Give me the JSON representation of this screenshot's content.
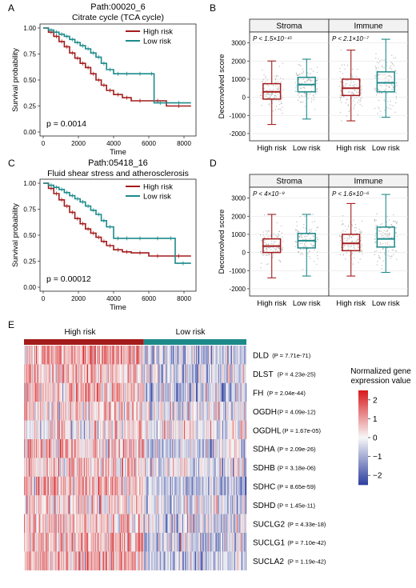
{
  "panels": {
    "A": {
      "letter": "A",
      "title": "Path:00020_6",
      "subtitle": "Citrate cycle (TCA cycle)",
      "pvalue": "p = 0.0014",
      "xlabel": "Time",
      "ylabel": "Survival probability",
      "legend": [
        "High risk",
        "Low risk"
      ]
    },
    "B": {
      "letter": "B",
      "ylabel": "Deconvolved score",
      "facets": [
        {
          "label": "Stroma",
          "p_text": "P < 1.5×10⁻¹⁵"
        },
        {
          "label": "Immune",
          "p_text": "P < 2.1×10⁻⁷"
        }
      ],
      "xticks": [
        "High risk",
        "Low risk",
        "High risk",
        "Low risk"
      ]
    },
    "C": {
      "letter": "C",
      "title": "Path:05418_16",
      "subtitle": "Fluid shear stress and atherosclerosis",
      "pvalue": "p = 0.00012",
      "xlabel": "Time",
      "ylabel": "Survival probability",
      "legend": [
        "High risk",
        "Low risk"
      ]
    },
    "D": {
      "letter": "D",
      "ylabel": "Deconvolved score",
      "facets": [
        {
          "label": "Stroma",
          "p_text": "P < 4×10⁻⁹"
        },
        {
          "label": "Immune",
          "p_text": "P < 1.6×10⁻⁶"
        }
      ],
      "xticks": [
        "High risk",
        "Low risk",
        "High risk",
        "Low risk"
      ]
    },
    "E": {
      "letter": "E",
      "group_labels": [
        "High risk",
        "Low risk"
      ],
      "legend_title": [
        "Normalized gene",
        "expression value"
      ]
    }
  },
  "colors": {
    "high": "#a31b1b",
    "low": "#1d8a8a",
    "heat_high": "#d7191c",
    "heat_mid": "#f7f7f7",
    "heat_low": "#2c3e9e"
  },
  "chart_data": [
    {
      "type": "line",
      "panel": "A",
      "chart": "kaplan-meier",
      "xlim": [
        0,
        8500
      ],
      "ylim": [
        0,
        1
      ],
      "xticks": [
        0,
        2000,
        4000,
        6000,
        8000
      ],
      "yticks": [
        0.0,
        0.25,
        0.5,
        0.75,
        1.0
      ],
      "series": [
        {
          "name": "High risk",
          "color": "#a31b1b",
          "x": [
            0,
            300,
            600,
            900,
            1200,
            1500,
            1800,
            2100,
            2400,
            2700,
            3000,
            3300,
            3600,
            4000,
            4500,
            5000,
            6000,
            7000,
            8400
          ],
          "y": [
            1.0,
            0.96,
            0.92,
            0.87,
            0.82,
            0.76,
            0.71,
            0.66,
            0.62,
            0.56,
            0.5,
            0.45,
            0.4,
            0.36,
            0.33,
            0.3,
            0.3,
            0.25,
            0.25
          ]
        },
        {
          "name": "Low risk",
          "color": "#1d8a8a",
          "x": [
            0,
            300,
            600,
            900,
            1200,
            1500,
            1800,
            2100,
            2400,
            2700,
            3000,
            3300,
            3600,
            4000,
            4500,
            5000,
            6000,
            6300,
            7000,
            8400
          ],
          "y": [
            1.0,
            0.98,
            0.96,
            0.94,
            0.92,
            0.89,
            0.86,
            0.83,
            0.8,
            0.76,
            0.72,
            0.66,
            0.6,
            0.56,
            0.56,
            0.56,
            0.56,
            0.28,
            0.28,
            0.28
          ]
        }
      ]
    },
    {
      "type": "box",
      "panel": "B",
      "ylim": [
        -2400,
        3600
      ],
      "yticks": [
        -2000,
        -1000,
        0,
        1000,
        2000,
        3000
      ],
      "facets": [
        "Stroma",
        "Immune"
      ],
      "groups": [
        {
          "facet": "Stroma",
          "name": "High risk",
          "color": "#a31b1b",
          "min": -1500,
          "q1": -100,
          "median": 300,
          "q3": 750,
          "max": 2000
        },
        {
          "facet": "Stroma",
          "name": "Low risk",
          "color": "#1d8a8a",
          "min": -1200,
          "q1": 300,
          "median": 700,
          "q3": 1100,
          "max": 2100
        },
        {
          "facet": "Immune",
          "name": "High risk",
          "color": "#a31b1b",
          "min": -1300,
          "q1": 100,
          "median": 500,
          "q3": 1000,
          "max": 2600
        },
        {
          "facet": "Immune",
          "name": "Low risk",
          "color": "#1d8a8a",
          "min": -1100,
          "q1": 300,
          "median": 800,
          "q3": 1400,
          "max": 3200
        }
      ]
    },
    {
      "type": "line",
      "panel": "C",
      "chart": "kaplan-meier",
      "xlim": [
        0,
        8500
      ],
      "ylim": [
        0,
        1
      ],
      "xticks": [
        0,
        2000,
        4000,
        6000,
        8000
      ],
      "yticks": [
        0.0,
        0.25,
        0.5,
        0.75,
        1.0
      ],
      "series": [
        {
          "name": "High risk",
          "color": "#a31b1b",
          "x": [
            0,
            300,
            600,
            900,
            1200,
            1500,
            1800,
            2100,
            2400,
            2700,
            3000,
            3300,
            3600,
            4000,
            4500,
            5000,
            6000,
            7000,
            8400
          ],
          "y": [
            1.0,
            0.95,
            0.9,
            0.84,
            0.78,
            0.72,
            0.66,
            0.61,
            0.56,
            0.52,
            0.48,
            0.44,
            0.4,
            0.36,
            0.34,
            0.33,
            0.3,
            0.3,
            0.3
          ]
        },
        {
          "name": "Low risk",
          "color": "#1d8a8a",
          "x": [
            0,
            300,
            600,
            900,
            1200,
            1500,
            1800,
            2100,
            2400,
            2700,
            3000,
            3300,
            3600,
            4000,
            4500,
            5000,
            6000,
            7000,
            7500,
            8400
          ],
          "y": [
            1.0,
            0.98,
            0.96,
            0.94,
            0.91,
            0.88,
            0.85,
            0.82,
            0.78,
            0.74,
            0.7,
            0.64,
            0.58,
            0.47,
            0.47,
            0.47,
            0.47,
            0.47,
            0.23,
            0.23
          ]
        }
      ]
    },
    {
      "type": "box",
      "panel": "D",
      "ylim": [
        -2400,
        3600
      ],
      "yticks": [
        -2000,
        -1000,
        0,
        1000,
        2000,
        3000
      ],
      "facets": [
        "Stroma",
        "Immune"
      ],
      "groups": [
        {
          "facet": "Stroma",
          "name": "High risk",
          "color": "#a31b1b",
          "min": -1400,
          "q1": 0,
          "median": 350,
          "q3": 750,
          "max": 2100
        },
        {
          "facet": "Stroma",
          "name": "Low risk",
          "color": "#1d8a8a",
          "min": -1300,
          "q1": 250,
          "median": 650,
          "q3": 1050,
          "max": 2100
        },
        {
          "facet": "Immune",
          "name": "High risk",
          "color": "#a31b1b",
          "min": -1300,
          "q1": 100,
          "median": 500,
          "q3": 1000,
          "max": 2700
        },
        {
          "facet": "Immune",
          "name": "Low risk",
          "color": "#1d8a8a",
          "min": -1100,
          "q1": 300,
          "median": 750,
          "q3": 1400,
          "max": 3200
        }
      ]
    },
    {
      "type": "heatmap",
      "panel": "E",
      "groups": [
        "High risk",
        "Low risk"
      ],
      "color_range": [
        -2.5,
        2.5
      ],
      "colorbar_ticks": [
        2,
        1,
        0,
        -1,
        -2
      ],
      "rows": [
        {
          "gene": "DLD",
          "p": "7.71e-71",
          "high_mean": 0.8,
          "low_mean": -0.7
        },
        {
          "gene": "DLST",
          "p": "4.23e-25",
          "high_mean": 0.6,
          "low_mean": -0.5
        },
        {
          "gene": "FH",
          "p": "2.04e-44",
          "high_mean": 0.7,
          "low_mean": -0.6
        },
        {
          "gene": "OGDH",
          "p": "4.09e-12",
          "high_mean": 0.4,
          "low_mean": -0.3
        },
        {
          "gene": "OGDHL",
          "p": "1.67e-05",
          "high_mean": 0.1,
          "low_mean": -0.05
        },
        {
          "gene": "SDHA",
          "p": "2.09e-26",
          "high_mean": 0.6,
          "low_mean": -0.5
        },
        {
          "gene": "SDHB",
          "p": "3.18e-06",
          "high_mean": 0.3,
          "low_mean": -0.2
        },
        {
          "gene": "SDHC",
          "p": "8.65e-59",
          "high_mean": 0.8,
          "low_mean": -0.7
        },
        {
          "gene": "SDHD",
          "p": "1.45e-11",
          "high_mean": 0.4,
          "low_mean": -0.3
        },
        {
          "gene": "SUCLG2",
          "p": "4.33e-18",
          "high_mean": 0.5,
          "low_mean": -0.4
        },
        {
          "gene": "SUCLG1",
          "p": "7.10e-42",
          "high_mean": 0.7,
          "low_mean": -0.6
        },
        {
          "gene": "SUCLA2",
          "p": "1.19e-42",
          "high_mean": 0.7,
          "low_mean": -0.6
        }
      ]
    }
  ]
}
